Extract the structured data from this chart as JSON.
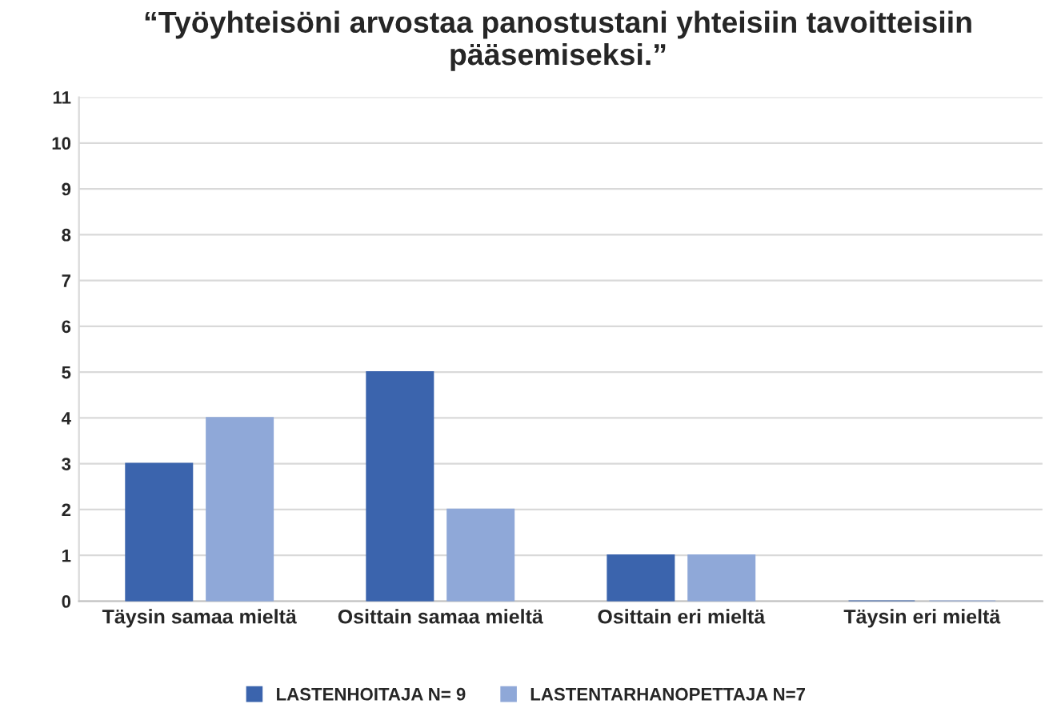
{
  "chart_data": {
    "type": "bar",
    "title": "“Työyhteisöni arvostaa panostustani yhteisiin tavoitteisiin pääsemiseksi.”",
    "categories": [
      "Täysin samaa mieltä",
      "Osittain samaa mieltä",
      "Osittain eri mieltä",
      "Täysin eri mieltä"
    ],
    "series": [
      {
        "name": "LASTENHOITAJA N= 9",
        "color": "#3b64ad",
        "values": [
          3,
          5,
          1,
          0
        ]
      },
      {
        "name": "LASTENTARHANOPETTAJA N=7",
        "color": "#8fa8d8",
        "values": [
          4,
          2,
          1,
          0
        ]
      }
    ],
    "ylim": [
      0,
      11
    ],
    "yticks": [
      0,
      1,
      2,
      3,
      4,
      5,
      6,
      7,
      8,
      9,
      10,
      11
    ],
    "grid": "y",
    "legend": "bottom"
  }
}
